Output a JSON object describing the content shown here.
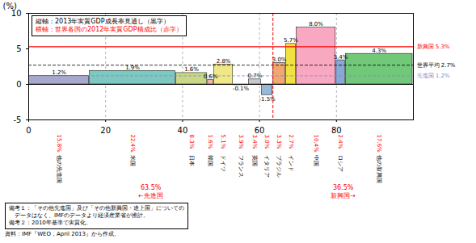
{
  "chart_data": {
    "type": "bar",
    "categories": [
      "他の先進国",
      "米国",
      "日本",
      "韓国",
      "ドイツ",
      "フランス",
      "英国",
      "イタリア",
      "ブラジル",
      "インド",
      "中国",
      "ロシア",
      "他の新興国"
    ],
    "values": [
      1.2,
      1.9,
      1.6,
      0.6,
      2.8,
      -0.1,
      0.7,
      -1.5,
      3.0,
      5.7,
      8.0,
      3.4,
      4.3
    ],
    "value_labels": [
      "1.2%",
      "1.9%",
      "1.6%",
      "0.6%",
      "2.8%",
      "-0.1%",
      "0.7%",
      "-1.5%",
      "3.0%",
      "5.7%",
      "8.0%",
      "3.4%",
      "4.3%"
    ],
    "colors": [
      "#a8a8cc",
      "#7dc8c0",
      "#c8d888",
      "#f0b8a8",
      "#f0e888",
      "#b0d898",
      "#c8c8c8",
      "#98b8d8",
      "#f0a870",
      "#f0e040",
      "#f8a8c0",
      "#88a8d8",
      "#70c878"
    ],
    "shares": [
      15.8,
      22.4,
      8.3,
      1.6,
      5.1,
      3.9,
      3.4,
      3.0,
      3.3,
      2.7,
      10.4,
      2.4,
      17.6
    ],
    "share_labels": [
      "15.8%",
      "22.4%",
      "8.3%",
      "1.6%",
      "5.1%",
      "3.9%",
      "3.4%",
      "3.0%",
      "3.3%",
      "2.7%",
      "10.4%",
      "2.4%",
      "17.6%"
    ],
    "share_color": "red",
    "xlim": [
      0,
      100
    ],
    "xticks": [
      0,
      20,
      40,
      60,
      80
    ],
    "ylim": [
      -5,
      10
    ],
    "yticks": [
      -5,
      0,
      5,
      10
    ],
    "ylabel": "(%)",
    "grid": true,
    "data_labels": true,
    "reference_lines": [
      {
        "name": "新興国",
        "value": 5.3,
        "label": "5.3%",
        "color": "red",
        "line_style": "solid"
      },
      {
        "name": "世界平均",
        "value": 2.7,
        "label": "2.7%",
        "color": "black",
        "line_style": "dashed"
      },
      {
        "name": "先進国",
        "value": 1.2,
        "label": "1.2%",
        "color": "#8888cc",
        "line_style": "dashed"
      }
    ],
    "groups": [
      {
        "name": "←先進国",
        "value": 63.5,
        "label": "63.5%",
        "color": "red"
      },
      {
        "name": "新興国→",
        "value": 36.5,
        "label": "36.5%",
        "color": "red"
      }
    ],
    "annotations": [
      {
        "text": "縦軸：2013年実質GDP成長率見通し（黒字）",
        "color": "black"
      },
      {
        "text": "横軸：世界各国の2012年実質GDP構成比（赤字）",
        "color": "red"
      }
    ],
    "notes": [
      "備考１：「その他先進国」及び「その他新興国・途上国」についての",
      "　データはなく、IMFのデータより経済産業省が推計。",
      "備考２：2010年基準で実質化。"
    ],
    "source": "資料：IMF『WEO，April 2013』から作成。"
  }
}
